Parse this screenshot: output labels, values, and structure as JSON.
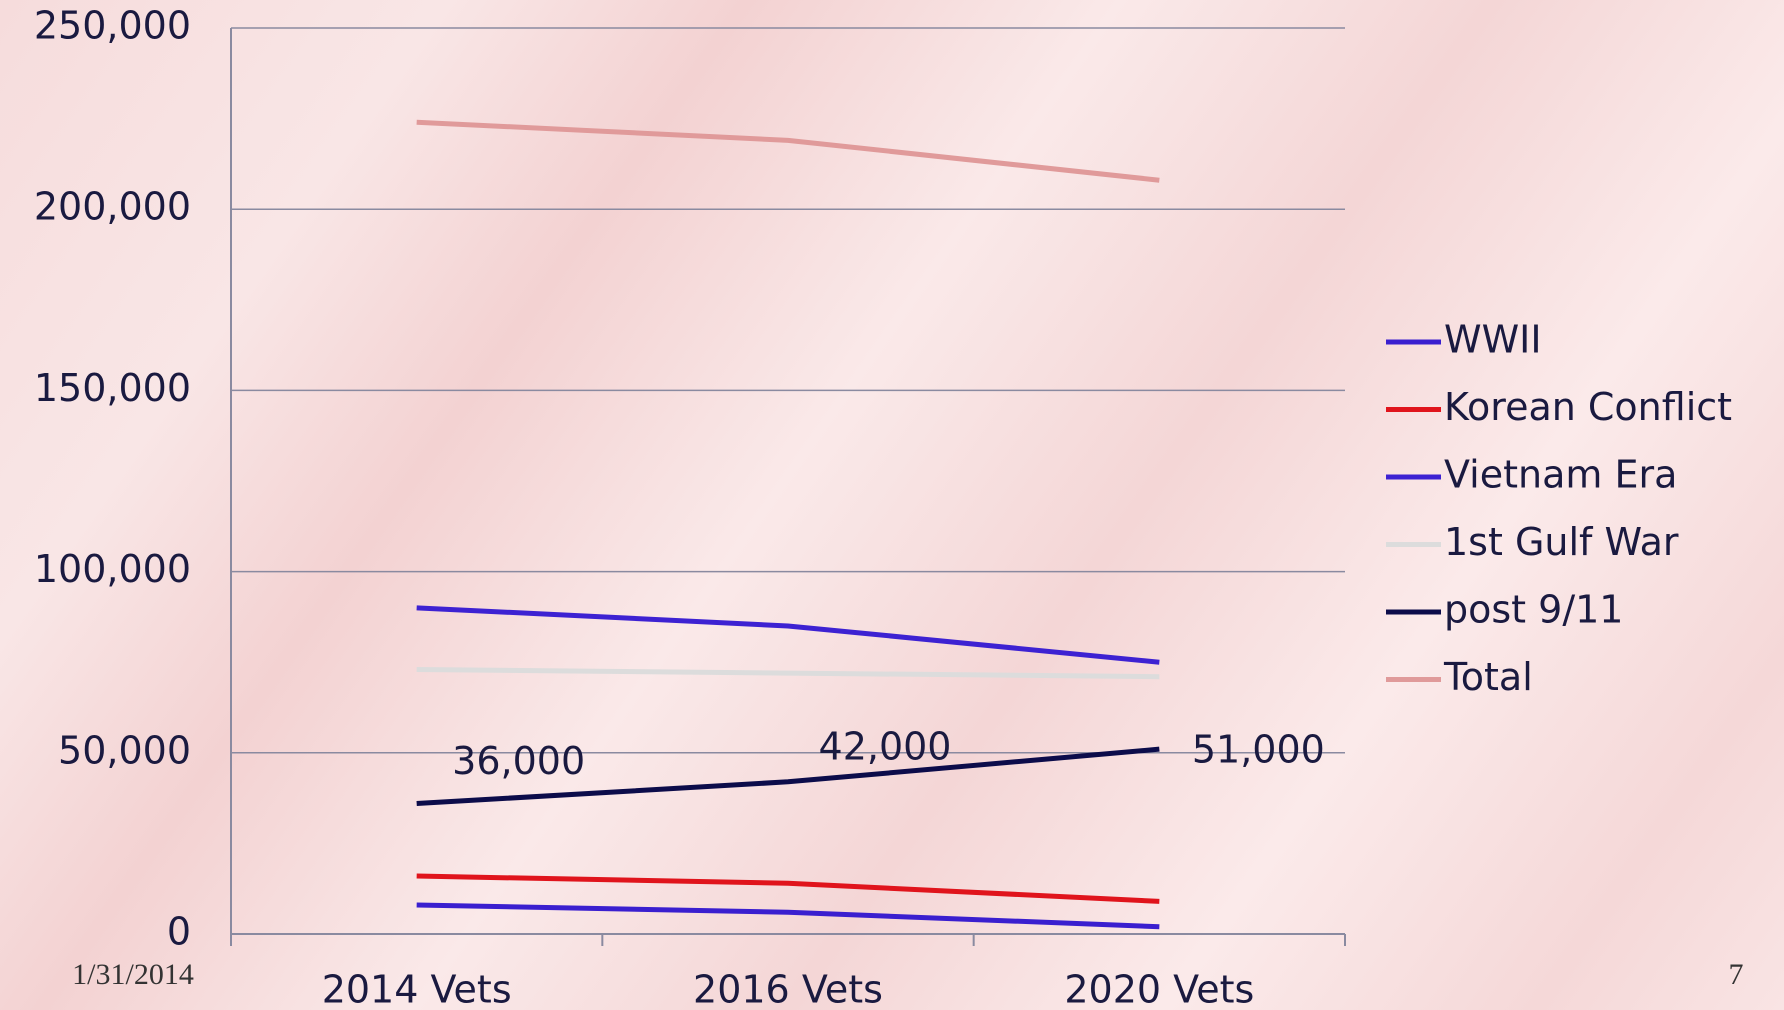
{
  "chart_data": {
    "type": "line",
    "categories": [
      "2014 Vets",
      "2016 Vets",
      "2020 Vets"
    ],
    "series": [
      {
        "name": "WWII",
        "color": "#3a1fcf",
        "values": [
          8000,
          6000,
          2000
        ]
      },
      {
        "name": "Korean Conflict",
        "color": "#e0141c",
        "values": [
          16000,
          14000,
          9000
        ]
      },
      {
        "name": "Vietnam Era",
        "color": "#3d22d2",
        "values": [
          90000,
          85000,
          75000
        ]
      },
      {
        "name": "1st Gulf War",
        "color": "#dcdcdc",
        "values": [
          73000,
          72000,
          71000
        ]
      },
      {
        "name": "post 9/11",
        "color": "#0c0c4a",
        "values": [
          36000,
          42000,
          51000
        ],
        "value_labels": [
          "36,000",
          "42,000",
          "51,000"
        ]
      },
      {
        "name": "Total",
        "color": "#e09a9a",
        "values": [
          224000,
          219000,
          208000
        ]
      }
    ],
    "ylim": [
      0,
      250000
    ],
    "yticks": [
      0,
      {
        "value": 50000,
        "label": "50,000"
      },
      {
        "value": 100000,
        "label": "100,000"
      },
      {
        "value": 150000,
        "label": "150,000"
      },
      {
        "value": 200000,
        "label": "200,000"
      },
      {
        "value": 250000,
        "label": "250,000"
      }
    ],
    "grid": true,
    "legend": "right"
  },
  "footer_date": "1/31/2014",
  "page_number": "7"
}
